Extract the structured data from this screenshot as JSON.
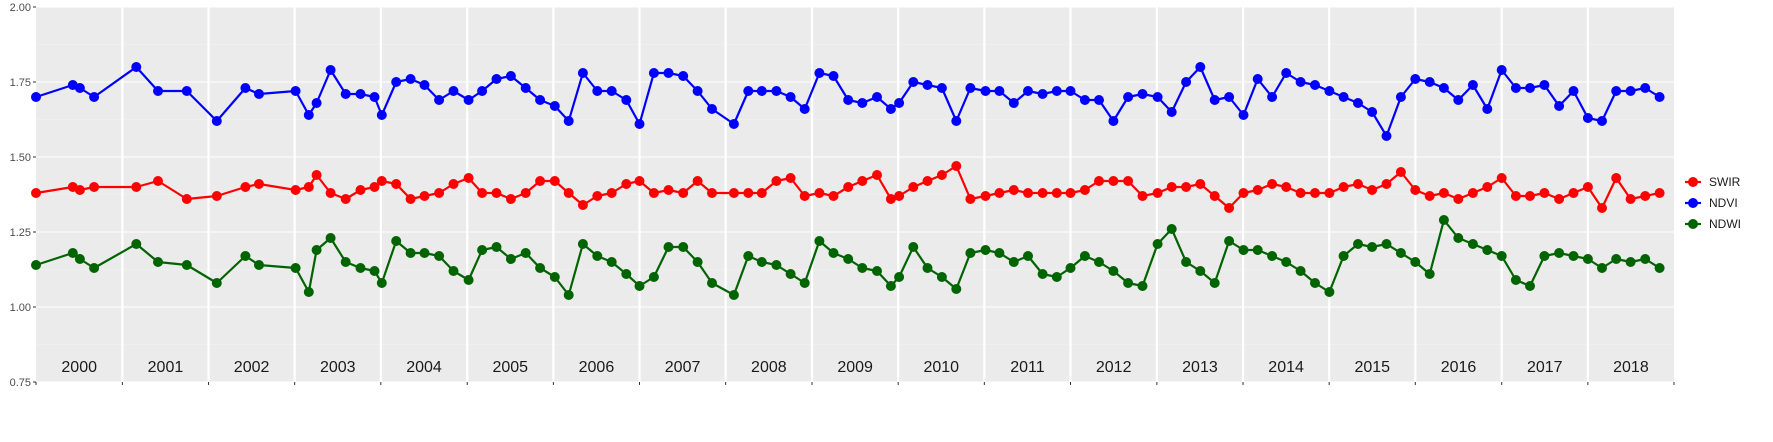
{
  "chart_data": {
    "type": "line",
    "title": "",
    "xlabel": "",
    "ylabel": "",
    "ylim": [
      0.75,
      2.0
    ],
    "xlim": [
      "2000-01-01",
      "2019-01-01"
    ],
    "yticks": [
      "0.75",
      "1.00",
      "1.25",
      "1.50",
      "1.75",
      "2.00"
    ],
    "year_labels": [
      "2000",
      "2001",
      "2002",
      "2003",
      "2004",
      "2005",
      "2006",
      "2007",
      "2008",
      "2009",
      "2010",
      "2011",
      "2012",
      "2013",
      "2014",
      "2015",
      "2016",
      "2017",
      "2018"
    ],
    "grid": true,
    "legend_position": "right",
    "series": [
      {
        "name": "SWIR",
        "color": "#ff0000",
        "x": [
          "2000-01-01",
          "2000-06-05",
          "2000-07-05",
          "2000-09-03",
          "2001-03-01",
          "2001-06-01",
          "2001-10-01",
          "2002-02-05",
          "2002-06-06",
          "2002-08-03",
          "2003-01-05",
          "2003-03-02",
          "2003-04-04",
          "2003-06-02",
          "2003-08-05",
          "2003-10-07",
          "2003-12-05",
          "2004-01-05",
          "2004-03-06",
          "2004-05-06",
          "2004-07-04",
          "2004-09-04",
          "2004-11-04",
          "2005-01-07",
          "2005-03-05",
          "2005-05-05",
          "2005-07-05",
          "2005-09-06",
          "2005-11-06",
          "2006-01-07",
          "2006-03-07",
          "2006-05-06",
          "2006-07-06",
          "2006-09-05",
          "2006-11-06",
          "2007-01-01",
          "2007-03-03",
          "2007-05-04",
          "2007-07-05",
          "2007-09-04",
          "2007-11-04",
          "2008-02-05",
          "2008-04-06",
          "2008-06-02",
          "2008-08-03",
          "2008-10-02",
          "2008-12-01",
          "2009-02-01",
          "2009-04-02",
          "2009-06-03",
          "2009-08-02",
          "2009-10-03",
          "2009-12-01",
          "2010-01-05",
          "2010-03-06",
          "2010-05-05",
          "2010-07-05",
          "2010-09-04",
          "2010-11-03",
          "2011-01-06",
          "2011-03-06",
          "2011-05-06",
          "2011-07-05",
          "2011-09-05",
          "2011-11-04",
          "2012-01-01",
          "2012-03-02",
          "2012-05-01",
          "2012-07-01",
          "2012-09-01",
          "2012-11-01",
          "2013-01-04",
          "2013-03-05",
          "2013-05-05",
          "2013-07-04",
          "2013-09-03",
          "2013-11-03",
          "2014-01-03",
          "2014-03-04",
          "2014-05-04",
          "2014-07-03",
          "2014-09-02",
          "2014-11-02",
          "2015-01-02",
          "2015-03-03",
          "2015-05-03",
          "2015-07-02",
          "2015-09-01",
          "2015-11-01",
          "2016-01-01",
          "2016-03-02",
          "2016-05-01",
          "2016-07-01",
          "2016-09-01",
          "2016-11-01",
          "2017-01-01",
          "2017-03-02",
          "2017-05-01",
          "2017-07-01",
          "2017-09-01",
          "2017-11-01",
          "2018-01-01",
          "2018-03-02",
          "2018-05-01",
          "2018-07-01",
          "2018-09-01",
          "2018-11-01"
        ],
        "y": [
          1.38,
          1.4,
          1.39,
          1.4,
          1.4,
          1.42,
          1.36,
          1.37,
          1.4,
          1.41,
          1.39,
          1.4,
          1.44,
          1.38,
          1.36,
          1.39,
          1.4,
          1.42,
          1.41,
          1.36,
          1.37,
          1.38,
          1.41,
          1.43,
          1.38,
          1.38,
          1.36,
          1.38,
          1.42,
          1.42,
          1.38,
          1.34,
          1.37,
          1.38,
          1.41,
          1.42,
          1.38,
          1.39,
          1.38,
          1.42,
          1.38,
          1.38,
          1.38,
          1.38,
          1.42,
          1.43,
          1.37,
          1.38,
          1.37,
          1.4,
          1.42,
          1.44,
          1.36,
          1.37,
          1.4,
          1.42,
          1.44,
          1.47,
          1.36,
          1.37,
          1.38,
          1.39,
          1.38,
          1.38,
          1.38,
          1.38,
          1.39,
          1.42,
          1.42,
          1.42,
          1.37,
          1.38,
          1.4,
          1.4,
          1.41,
          1.37,
          1.33,
          1.38,
          1.39,
          1.41,
          1.4,
          1.38,
          1.38,
          1.38,
          1.4,
          1.41,
          1.39,
          1.41,
          1.45,
          1.39,
          1.37,
          1.38,
          1.36,
          1.38,
          1.4,
          1.43,
          1.37,
          1.37,
          1.38,
          1.36,
          1.38,
          1.4,
          1.33,
          1.43,
          1.36,
          1.37,
          1.38
        ]
      },
      {
        "name": "NDVI",
        "color": "#0000ff",
        "x": [
          "2000-01-01",
          "2000-06-05",
          "2000-07-05",
          "2000-09-03",
          "2001-03-01",
          "2001-06-01",
          "2001-10-01",
          "2002-02-05",
          "2002-06-06",
          "2002-08-03",
          "2003-01-05",
          "2003-03-02",
          "2003-04-04",
          "2003-06-02",
          "2003-08-05",
          "2003-10-07",
          "2003-12-05",
          "2004-01-05",
          "2004-03-06",
          "2004-05-06",
          "2004-07-04",
          "2004-09-04",
          "2004-11-04",
          "2005-01-07",
          "2005-03-05",
          "2005-05-05",
          "2005-07-05",
          "2005-09-06",
          "2005-11-06",
          "2006-01-07",
          "2006-03-07",
          "2006-05-06",
          "2006-07-06",
          "2006-09-05",
          "2006-11-06",
          "2007-01-01",
          "2007-03-03",
          "2007-05-04",
          "2007-07-05",
          "2007-09-04",
          "2007-11-04",
          "2008-02-05",
          "2008-04-06",
          "2008-06-02",
          "2008-08-03",
          "2008-10-02",
          "2008-12-01",
          "2009-02-01",
          "2009-04-02",
          "2009-06-03",
          "2009-08-02",
          "2009-10-03",
          "2009-12-01",
          "2010-01-05",
          "2010-03-06",
          "2010-05-05",
          "2010-07-05",
          "2010-09-04",
          "2010-11-03",
          "2011-01-06",
          "2011-03-06",
          "2011-05-06",
          "2011-07-05",
          "2011-09-05",
          "2011-11-04",
          "2012-01-01",
          "2012-03-02",
          "2012-05-01",
          "2012-07-01",
          "2012-09-01",
          "2012-11-01",
          "2013-01-04",
          "2013-03-05",
          "2013-05-05",
          "2013-07-04",
          "2013-09-03",
          "2013-11-03",
          "2014-01-03",
          "2014-03-04",
          "2014-05-04",
          "2014-07-03",
          "2014-09-02",
          "2014-11-02",
          "2015-01-02",
          "2015-03-03",
          "2015-05-03",
          "2015-07-02",
          "2015-09-01",
          "2015-11-01",
          "2016-01-01",
          "2016-03-02",
          "2016-05-01",
          "2016-07-01",
          "2016-09-01",
          "2016-11-01",
          "2017-01-01",
          "2017-03-02",
          "2017-05-01",
          "2017-07-01",
          "2017-09-01",
          "2017-11-01",
          "2018-01-01",
          "2018-03-02",
          "2018-05-01",
          "2018-07-01",
          "2018-09-01",
          "2018-11-01"
        ],
        "y": [
          1.7,
          1.74,
          1.73,
          1.7,
          1.8,
          1.72,
          1.72,
          1.62,
          1.73,
          1.71,
          1.72,
          1.64,
          1.68,
          1.79,
          1.71,
          1.71,
          1.7,
          1.64,
          1.75,
          1.76,
          1.74,
          1.69,
          1.72,
          1.69,
          1.72,
          1.76,
          1.77,
          1.73,
          1.69,
          1.67,
          1.62,
          1.78,
          1.72,
          1.72,
          1.69,
          1.61,
          1.78,
          1.78,
          1.77,
          1.72,
          1.66,
          1.61,
          1.72,
          1.72,
          1.72,
          1.7,
          1.66,
          1.78,
          1.77,
          1.69,
          1.68,
          1.7,
          1.66,
          1.68,
          1.75,
          1.74,
          1.73,
          1.62,
          1.73,
          1.72,
          1.72,
          1.68,
          1.72,
          1.71,
          1.72,
          1.72,
          1.69,
          1.69,
          1.62,
          1.7,
          1.71,
          1.7,
          1.65,
          1.75,
          1.8,
          1.69,
          1.7,
          1.64,
          1.76,
          1.7,
          1.78,
          1.75,
          1.74,
          1.72,
          1.7,
          1.68,
          1.65,
          1.57,
          1.7,
          1.76,
          1.75,
          1.73,
          1.69,
          1.74,
          1.66,
          1.79,
          1.73,
          1.73,
          1.74,
          1.67,
          1.72,
          1.63,
          1.62,
          1.72,
          1.72,
          1.73,
          1.7
        ]
      },
      {
        "name": "NDWI",
        "color": "#006400",
        "x": [
          "2000-01-01",
          "2000-06-05",
          "2000-07-05",
          "2000-09-03",
          "2001-03-01",
          "2001-06-01",
          "2001-10-01",
          "2002-02-05",
          "2002-06-06",
          "2002-08-03",
          "2003-01-05",
          "2003-03-02",
          "2003-04-04",
          "2003-06-02",
          "2003-08-05",
          "2003-10-07",
          "2003-12-05",
          "2004-01-05",
          "2004-03-06",
          "2004-05-06",
          "2004-07-04",
          "2004-09-04",
          "2004-11-04",
          "2005-01-07",
          "2005-03-05",
          "2005-05-05",
          "2005-07-05",
          "2005-09-06",
          "2005-11-06",
          "2006-01-07",
          "2006-03-07",
          "2006-05-06",
          "2006-07-06",
          "2006-09-05",
          "2006-11-06",
          "2007-01-01",
          "2007-03-03",
          "2007-05-04",
          "2007-07-05",
          "2007-09-04",
          "2007-11-04",
          "2008-02-05",
          "2008-04-06",
          "2008-06-02",
          "2008-08-03",
          "2008-10-02",
          "2008-12-01",
          "2009-02-01",
          "2009-04-02",
          "2009-06-03",
          "2009-08-02",
          "2009-10-03",
          "2009-12-01",
          "2010-01-05",
          "2010-03-06",
          "2010-05-05",
          "2010-07-05",
          "2010-09-04",
          "2010-11-03",
          "2011-01-06",
          "2011-03-06",
          "2011-05-06",
          "2011-07-05",
          "2011-09-05",
          "2011-11-04",
          "2012-01-01",
          "2012-03-02",
          "2012-05-01",
          "2012-07-01",
          "2012-09-01",
          "2012-11-01",
          "2013-01-04",
          "2013-03-05",
          "2013-05-05",
          "2013-07-04",
          "2013-09-03",
          "2013-11-03",
          "2014-01-03",
          "2014-03-04",
          "2014-05-04",
          "2014-07-03",
          "2014-09-02",
          "2014-11-02",
          "2015-01-02",
          "2015-03-03",
          "2015-05-03",
          "2015-07-02",
          "2015-09-01",
          "2015-11-01",
          "2016-01-01",
          "2016-03-02",
          "2016-05-01",
          "2016-07-01",
          "2016-09-01",
          "2016-11-01",
          "2017-01-01",
          "2017-03-02",
          "2017-05-01",
          "2017-07-01",
          "2017-09-01",
          "2017-11-01",
          "2018-01-01",
          "2018-03-02",
          "2018-05-01",
          "2018-07-01",
          "2018-09-01",
          "2018-11-01"
        ],
        "y": [
          1.14,
          1.18,
          1.16,
          1.13,
          1.21,
          1.15,
          1.14,
          1.08,
          1.17,
          1.14,
          1.13,
          1.05,
          1.19,
          1.23,
          1.15,
          1.13,
          1.12,
          1.08,
          1.22,
          1.18,
          1.18,
          1.17,
          1.12,
          1.09,
          1.19,
          1.2,
          1.16,
          1.18,
          1.13,
          1.1,
          1.04,
          1.21,
          1.17,
          1.15,
          1.11,
          1.07,
          1.1,
          1.2,
          1.2,
          1.15,
          1.08,
          1.04,
          1.17,
          1.15,
          1.14,
          1.11,
          1.08,
          1.22,
          1.18,
          1.16,
          1.13,
          1.12,
          1.07,
          1.1,
          1.2,
          1.13,
          1.1,
          1.06,
          1.18,
          1.19,
          1.18,
          1.15,
          1.17,
          1.11,
          1.1,
          1.13,
          1.17,
          1.15,
          1.12,
          1.08,
          1.07,
          1.21,
          1.26,
          1.15,
          1.12,
          1.08,
          1.22,
          1.19,
          1.19,
          1.17,
          1.15,
          1.12,
          1.08,
          1.05,
          1.17,
          1.21,
          1.2,
          1.21,
          1.18,
          1.15,
          1.11,
          1.29,
          1.23,
          1.21,
          1.19,
          1.17,
          1.09,
          1.07,
          1.17,
          1.18,
          1.17,
          1.16,
          1.13,
          1.16,
          1.15,
          1.16,
          1.13
        ]
      }
    ]
  }
}
